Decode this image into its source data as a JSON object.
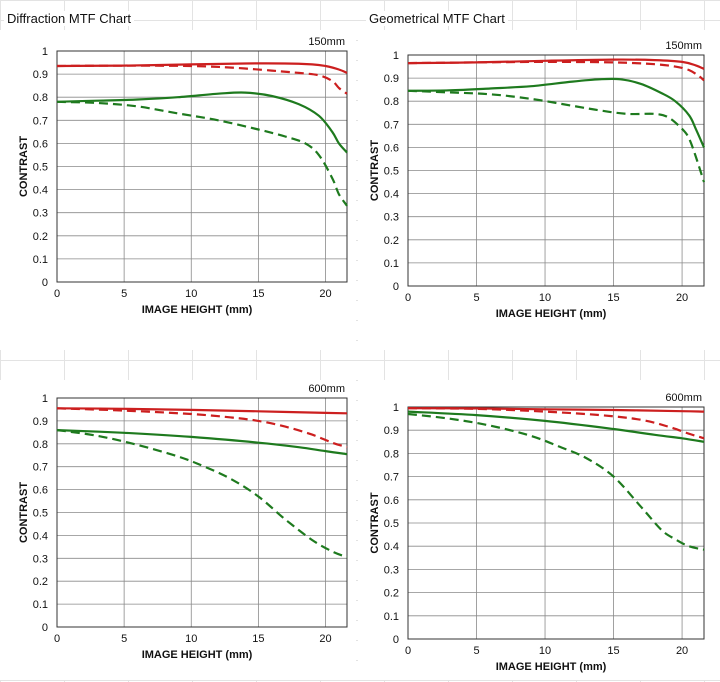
{
  "titles": {
    "diffraction": "Diffraction MTF Chart",
    "geometrical": "Geometrical MTF Chart"
  },
  "colors": {
    "sagittal_red": "#cc1f1f",
    "green": "#1e7a1e",
    "grid": "#8a8a8a"
  },
  "chart_data": [
    {
      "type": "line",
      "panel_title": "Diffraction MTF Chart",
      "focal_label": "150mm",
      "xlabel": "IMAGE HEIGHT (mm)",
      "ylabel": "CONTRAST",
      "xlim": [
        0,
        21.6
      ],
      "ylim": [
        0,
        1
      ],
      "xticks": [
        0,
        5,
        10,
        15,
        20
      ],
      "yticks": [
        0,
        0.1,
        0.2,
        0.3,
        0.4,
        0.5,
        0.6,
        0.7,
        0.8,
        0.9,
        1
      ],
      "grid": true,
      "series": [
        {
          "color": "red",
          "dash": false,
          "x": [
            0,
            5,
            10,
            14,
            17,
            19,
            20,
            21,
            21.6
          ],
          "y": [
            0.935,
            0.937,
            0.942,
            0.946,
            0.946,
            0.942,
            0.935,
            0.92,
            0.905
          ]
        },
        {
          "color": "red",
          "dash": true,
          "x": [
            0,
            5,
            10,
            13,
            16,
            18,
            19.5,
            20.5,
            21,
            21.6
          ],
          "y": [
            0.935,
            0.937,
            0.935,
            0.928,
            0.915,
            0.905,
            0.895,
            0.87,
            0.84,
            0.815
          ]
        },
        {
          "color": "green",
          "dash": false,
          "x": [
            0,
            3,
            6,
            9,
            12,
            14,
            16,
            18,
            19.5,
            20.5,
            21,
            21.6
          ],
          "y": [
            0.78,
            0.785,
            0.79,
            0.8,
            0.815,
            0.82,
            0.805,
            0.77,
            0.72,
            0.65,
            0.6,
            0.56
          ]
        },
        {
          "color": "green",
          "dash": true,
          "x": [
            0,
            3,
            6,
            9,
            12,
            15,
            17,
            18.5,
            19.5,
            20.5,
            21,
            21.6
          ],
          "y": [
            0.78,
            0.775,
            0.76,
            0.73,
            0.7,
            0.66,
            0.63,
            0.6,
            0.55,
            0.45,
            0.38,
            0.33
          ]
        }
      ]
    },
    {
      "type": "line",
      "panel_title": "Geometrical MTF Chart",
      "focal_label": "150mm",
      "xlabel": "IMAGE HEIGHT (mm)",
      "ylabel": "CONTRAST",
      "xlim": [
        0,
        21.6
      ],
      "ylim": [
        0,
        1
      ],
      "xticks": [
        0,
        5,
        10,
        15,
        20
      ],
      "yticks": [
        0,
        0.1,
        0.2,
        0.3,
        0.4,
        0.5,
        0.6,
        0.7,
        0.8,
        0.9,
        1
      ],
      "grid": true,
      "series": [
        {
          "color": "red",
          "dash": false,
          "x": [
            0,
            5,
            10,
            15,
            18,
            20,
            21,
            21.6
          ],
          "y": [
            0.965,
            0.968,
            0.975,
            0.98,
            0.978,
            0.97,
            0.955,
            0.94
          ]
        },
        {
          "color": "red",
          "dash": true,
          "x": [
            0,
            5,
            10,
            15,
            18,
            19.5,
            20.5,
            21.2,
            21.6
          ],
          "y": [
            0.965,
            0.968,
            0.97,
            0.968,
            0.96,
            0.95,
            0.935,
            0.91,
            0.89
          ]
        },
        {
          "color": "green",
          "dash": false,
          "x": [
            0,
            3,
            6,
            9,
            12,
            14,
            15.5,
            17,
            18.5,
            19.5,
            20.5,
            21,
            21.6
          ],
          "y": [
            0.845,
            0.847,
            0.855,
            0.865,
            0.885,
            0.895,
            0.895,
            0.875,
            0.835,
            0.8,
            0.74,
            0.68,
            0.6
          ]
        },
        {
          "color": "green",
          "dash": true,
          "x": [
            0,
            3,
            6,
            9,
            12,
            14,
            16,
            18,
            19,
            20,
            20.5,
            21,
            21.6
          ],
          "y": [
            0.845,
            0.838,
            0.83,
            0.81,
            0.78,
            0.76,
            0.745,
            0.745,
            0.73,
            0.68,
            0.64,
            0.56,
            0.45
          ]
        }
      ]
    },
    {
      "type": "line",
      "panel_title": "Diffraction MTF Chart",
      "focal_label": "600mm",
      "xlabel": "IMAGE HEIGHT (mm)",
      "ylabel": "CONTRAST",
      "xlim": [
        0,
        21.6
      ],
      "ylim": [
        0,
        1
      ],
      "xticks": [
        0,
        5,
        10,
        15,
        20
      ],
      "yticks": [
        0,
        0.1,
        0.2,
        0.3,
        0.4,
        0.5,
        0.6,
        0.7,
        0.8,
        0.9,
        1
      ],
      "grid": true,
      "series": [
        {
          "color": "red",
          "dash": false,
          "x": [
            0,
            5,
            10,
            15,
            20,
            21.6
          ],
          "y": [
            0.955,
            0.953,
            0.948,
            0.942,
            0.935,
            0.933
          ]
        },
        {
          "color": "red",
          "dash": true,
          "x": [
            0,
            5,
            10,
            13,
            15,
            17,
            19,
            20.5,
            21.6
          ],
          "y": [
            0.955,
            0.945,
            0.93,
            0.915,
            0.9,
            0.875,
            0.84,
            0.805,
            0.785
          ]
        },
        {
          "color": "green",
          "dash": false,
          "x": [
            0,
            5,
            10,
            15,
            18,
            20,
            21.6
          ],
          "y": [
            0.86,
            0.848,
            0.83,
            0.805,
            0.785,
            0.768,
            0.755
          ]
        },
        {
          "color": "green",
          "dash": true,
          "x": [
            0,
            3,
            6,
            9,
            11,
            13,
            15,
            17,
            19,
            20.5,
            21.6
          ],
          "y": [
            0.86,
            0.835,
            0.795,
            0.745,
            0.7,
            0.645,
            0.57,
            0.47,
            0.38,
            0.33,
            0.305
          ]
        }
      ]
    },
    {
      "type": "line",
      "panel_title": "Geometrical MTF Chart",
      "focal_label": "600mm",
      "xlabel": "IMAGE HEIGHT (mm)",
      "ylabel": "CONTRAST",
      "xlim": [
        0,
        21.6
      ],
      "ylim": [
        0,
        1
      ],
      "xticks": [
        0,
        5,
        10,
        15,
        20
      ],
      "yticks": [
        0,
        0.1,
        0.2,
        0.3,
        0.4,
        0.5,
        0.6,
        0.7,
        0.8,
        0.9,
        1
      ],
      "grid": true,
      "series": [
        {
          "color": "red",
          "dash": false,
          "x": [
            0,
            5,
            10,
            15,
            20,
            21.6
          ],
          "y": [
            0.995,
            0.994,
            0.99,
            0.987,
            0.982,
            0.98
          ]
        },
        {
          "color": "red",
          "dash": true,
          "x": [
            0,
            5,
            10,
            14,
            17,
            19,
            20.5,
            21.6
          ],
          "y": [
            0.995,
            0.992,
            0.98,
            0.965,
            0.945,
            0.915,
            0.885,
            0.865
          ]
        },
        {
          "color": "green",
          "dash": false,
          "x": [
            0,
            5,
            10,
            15,
            18,
            20,
            21.6
          ],
          "y": [
            0.98,
            0.965,
            0.94,
            0.905,
            0.88,
            0.865,
            0.85
          ]
        },
        {
          "color": "green",
          "dash": true,
          "x": [
            0,
            3,
            6,
            9,
            11,
            13,
            15,
            17,
            18.5,
            19.5,
            20.5,
            21.6
          ],
          "y": [
            0.97,
            0.95,
            0.92,
            0.875,
            0.83,
            0.78,
            0.7,
            0.57,
            0.47,
            0.43,
            0.4,
            0.385
          ]
        }
      ]
    }
  ]
}
